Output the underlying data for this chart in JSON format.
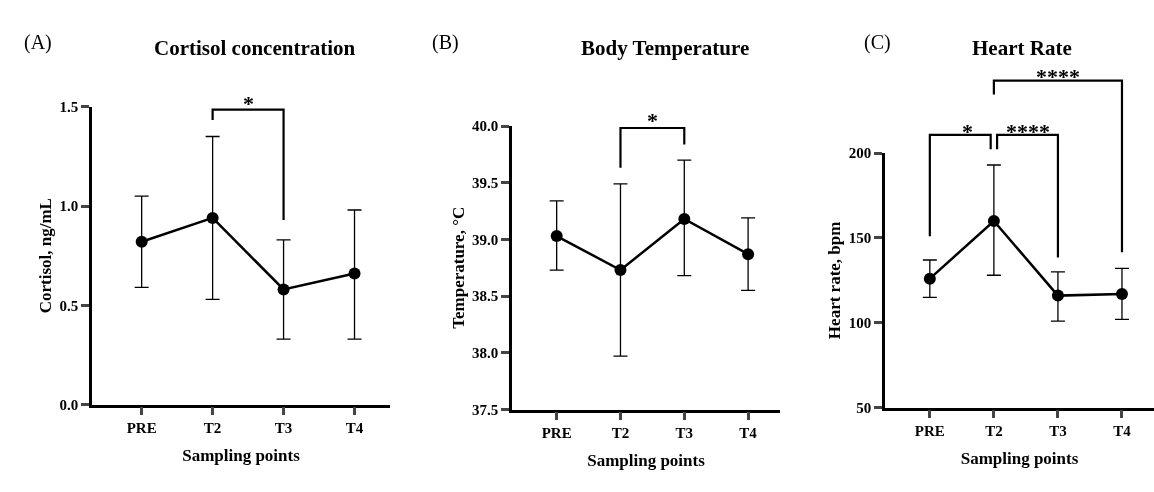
{
  "chart_data": [
    {
      "type": "line",
      "title": "Cortisol concentration",
      "xlabel": "Sampling points",
      "ylabel": "Cortisol, ng/mL",
      "categories": [
        "PRE",
        "T2",
        "T3",
        "T4"
      ],
      "series": [
        {
          "color": "#000000",
          "values": [
            0.82,
            0.94,
            0.58,
            0.66
          ],
          "errors": [
            [
              0.59,
              1.05
            ],
            [
              0.53,
              1.35
            ],
            [
              0.33,
              0.83
            ],
            [
              0.33,
              0.98
            ]
          ]
        }
      ],
      "ylim": [
        0,
        1.5
      ],
      "yticks": [
        {
          "value": 0,
          "label": "0.0"
        },
        0.5,
        {
          "value": 1,
          "label": "1.0"
        },
        1.5
      ],
      "marker": "circle",
      "annotations": [
        "(A)",
        "*"
      ]
    },
    {
      "type": "line",
      "title": "Body Temperature",
      "xlabel": "Sampling points",
      "ylabel": "Temperature, °C",
      "categories": [
        "PRE",
        "T2",
        "T3",
        "T4"
      ],
      "series": [
        {
          "color": "#000000",
          "values": [
            39.03,
            38.73,
            39.18,
            38.87
          ],
          "errors": [
            [
              38.73,
              39.34
            ],
            [
              37.97,
              39.49
            ],
            [
              38.68,
              39.7
            ],
            [
              38.55,
              39.19
            ]
          ]
        }
      ],
      "ylim": [
        37.5,
        40
      ],
      "yticks": [
        37.5,
        {
          "value": 38,
          "label": "38.0"
        },
        38.5,
        {
          "value": 39,
          "label": "39.0"
        },
        39.5,
        {
          "value": 40,
          "label": "40.0"
        }
      ],
      "marker": "circle",
      "annotations": [
        "(B)",
        "*"
      ]
    },
    {
      "type": "line",
      "title": "Heart Rate",
      "xlabel": "Sampling points",
      "ylabel": "Heart rate, bpm",
      "categories": [
        "PRE",
        "T2",
        "T3",
        "T4"
      ],
      "series": [
        {
          "color": "#000000",
          "values": [
            126,
            160,
            116,
            117
          ],
          "errors": [
            [
              115,
              137
            ],
            [
              128,
              193
            ],
            [
              101,
              130
            ],
            [
              102,
              132
            ]
          ]
        }
      ],
      "ylim": [
        50,
        200
      ],
      "yticks": [
        50,
        100,
        150,
        200
      ],
      "marker": "circle",
      "annotations": [
        "(C)",
        "*",
        "****",
        "****"
      ]
    }
  ]
}
